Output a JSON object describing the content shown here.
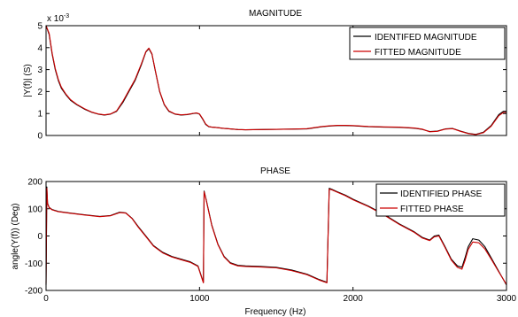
{
  "chart_data": [
    {
      "type": "line",
      "title": "MAGNITUDE",
      "xlabel": "",
      "ylabel": "|Y(f)| (S)",
      "exponent_label": "x 10",
      "exponent_power": "-3",
      "xlim": [
        0,
        3000
      ],
      "ylim": [
        0,
        5
      ],
      "yticks": [
        "0",
        "1",
        "2",
        "3",
        "4",
        "5"
      ],
      "legend_position": "top-right",
      "series": [
        {
          "name": "IDENTIFED MAGNITUDE",
          "color": "#000000",
          "x": [
            0,
            20,
            40,
            60,
            80,
            100,
            130,
            160,
            200,
            250,
            300,
            340,
            380,
            420,
            460,
            500,
            540,
            580,
            620,
            650,
            670,
            690,
            710,
            740,
            770,
            800,
            840,
            880,
            920,
            960,
            980,
            1000,
            1020,
            1040,
            1060,
            1080,
            1100,
            1150,
            1200,
            1250,
            1300,
            1400,
            1500,
            1600,
            1700,
            1750,
            1800,
            1850,
            1900,
            1950,
            2000,
            2050,
            2100,
            2200,
            2300,
            2400,
            2450,
            2500,
            2550,
            2600,
            2650,
            2700,
            2750,
            2800,
            2850,
            2900,
            2950,
            2980,
            3000
          ],
          "values": [
            5.0,
            4.6,
            3.7,
            3.0,
            2.5,
            2.15,
            1.85,
            1.6,
            1.4,
            1.2,
            1.05,
            0.97,
            0.93,
            0.97,
            1.1,
            1.5,
            2.0,
            2.5,
            3.2,
            3.8,
            3.95,
            3.7,
            3.0,
            2.0,
            1.4,
            1.1,
            0.97,
            0.93,
            0.95,
            1.0,
            1.02,
            0.97,
            0.75,
            0.5,
            0.4,
            0.38,
            0.37,
            0.33,
            0.3,
            0.27,
            0.26,
            0.27,
            0.28,
            0.29,
            0.3,
            0.35,
            0.4,
            0.43,
            0.45,
            0.45,
            0.44,
            0.42,
            0.4,
            0.38,
            0.37,
            0.33,
            0.28,
            0.18,
            0.2,
            0.3,
            0.32,
            0.2,
            0.1,
            0.05,
            0.15,
            0.45,
            0.95,
            1.1,
            1.1
          ]
        },
        {
          "name": "FITTED MAGNITUDE",
          "color": "#cc0000",
          "x": [
            0,
            20,
            40,
            60,
            80,
            100,
            130,
            160,
            200,
            250,
            300,
            340,
            380,
            420,
            460,
            500,
            540,
            580,
            620,
            650,
            670,
            690,
            710,
            740,
            770,
            800,
            840,
            880,
            920,
            960,
            980,
            1000,
            1020,
            1040,
            1060,
            1080,
            1100,
            1150,
            1200,
            1250,
            1300,
            1400,
            1500,
            1600,
            1700,
            1750,
            1800,
            1850,
            1900,
            1950,
            2000,
            2050,
            2100,
            2200,
            2300,
            2400,
            2450,
            2500,
            2550,
            2600,
            2650,
            2700,
            2750,
            2800,
            2850,
            2900,
            2950,
            2980,
            3000
          ],
          "values": [
            5.0,
            4.65,
            3.75,
            3.05,
            2.55,
            2.2,
            1.88,
            1.63,
            1.42,
            1.22,
            1.06,
            0.98,
            0.94,
            0.98,
            1.12,
            1.55,
            2.05,
            2.55,
            3.25,
            3.82,
            3.98,
            3.72,
            3.02,
            2.02,
            1.42,
            1.12,
            0.98,
            0.94,
            0.96,
            1.01,
            1.03,
            0.98,
            0.77,
            0.52,
            0.41,
            0.38,
            0.37,
            0.33,
            0.3,
            0.27,
            0.26,
            0.27,
            0.28,
            0.29,
            0.31,
            0.36,
            0.41,
            0.44,
            0.46,
            0.46,
            0.45,
            0.43,
            0.41,
            0.39,
            0.38,
            0.34,
            0.29,
            0.17,
            0.19,
            0.29,
            0.31,
            0.19,
            0.09,
            0.04,
            0.13,
            0.42,
            0.9,
            1.05,
            1.05
          ]
        }
      ]
    },
    {
      "type": "line",
      "title": "PHASE",
      "xlabel": "Frequency (Hz)",
      "ylabel": "angle(Y(f)) (Deg)",
      "xlim": [
        0,
        3000
      ],
      "ylim": [
        -200,
        200
      ],
      "xticks": [
        "0",
        "1000",
        "2000",
        "3000"
      ],
      "yticks": [
        "-200",
        "-100",
        "0",
        "100",
        "200"
      ],
      "legend_position": "top-right",
      "series": [
        {
          "name": "IDENTIFIED PHASE",
          "color": "#000000",
          "x": [
            0,
            5,
            10,
            20,
            40,
            80,
            150,
            250,
            350,
            420,
            480,
            520,
            560,
            600,
            650,
            700,
            760,
            820,
            880,
            940,
            990,
            1025,
            1030,
            1045,
            1080,
            1120,
            1160,
            1200,
            1250,
            1300,
            1400,
            1500,
            1600,
            1700,
            1780,
            1830,
            1845,
            1860,
            1900,
            1950,
            2000,
            2100,
            2200,
            2300,
            2400,
            2450,
            2500,
            2530,
            2560,
            2600,
            2640,
            2680,
            2710,
            2730,
            2750,
            2780,
            2820,
            2860,
            2900,
            2950,
            3000
          ],
          "values": [
            -180,
            180,
            120,
            105,
            97,
            90,
            85,
            78,
            72,
            75,
            87,
            85,
            65,
            35,
            0,
            -35,
            -60,
            -75,
            -85,
            -95,
            -110,
            -170,
            165,
            130,
            40,
            -30,
            -75,
            -98,
            -108,
            -110,
            -112,
            -115,
            -125,
            -140,
            -160,
            -170,
            175,
            172,
            162,
            150,
            135,
            110,
            80,
            45,
            15,
            -5,
            -15,
            0,
            3,
            -40,
            -85,
            -110,
            -115,
            -80,
            -40,
            -10,
            -15,
            -40,
            -80,
            -130,
            -180
          ]
        },
        {
          "name": "FITTED PHASE",
          "color": "#cc0000",
          "x": [
            0,
            5,
            10,
            20,
            40,
            80,
            150,
            250,
            350,
            420,
            480,
            520,
            560,
            600,
            650,
            700,
            760,
            820,
            880,
            940,
            990,
            1025,
            1030,
            1045,
            1080,
            1120,
            1160,
            1200,
            1250,
            1300,
            1400,
            1500,
            1600,
            1700,
            1780,
            1830,
            1845,
            1860,
            1900,
            1950,
            2000,
            2100,
            2200,
            2300,
            2400,
            2450,
            2500,
            2530,
            2560,
            2600,
            2640,
            2680,
            2710,
            2730,
            2750,
            2780,
            2820,
            2860,
            2900,
            2950,
            3000
          ],
          "values": [
            -175,
            175,
            118,
            104,
            96,
            89,
            84,
            77,
            71,
            74,
            86,
            84,
            64,
            33,
            -2,
            -37,
            -62,
            -77,
            -87,
            -97,
            -112,
            -172,
            162,
            128,
            38,
            -32,
            -77,
            -100,
            -110,
            -112,
            -114,
            -117,
            -127,
            -142,
            -162,
            -172,
            172,
            170,
            160,
            148,
            133,
            108,
            78,
            43,
            13,
            -7,
            -17,
            -3,
            0,
            -43,
            -88,
            -115,
            -122,
            -90,
            -50,
            -22,
            -25,
            -48,
            -85,
            -132,
            -178
          ]
        }
      ]
    }
  ]
}
